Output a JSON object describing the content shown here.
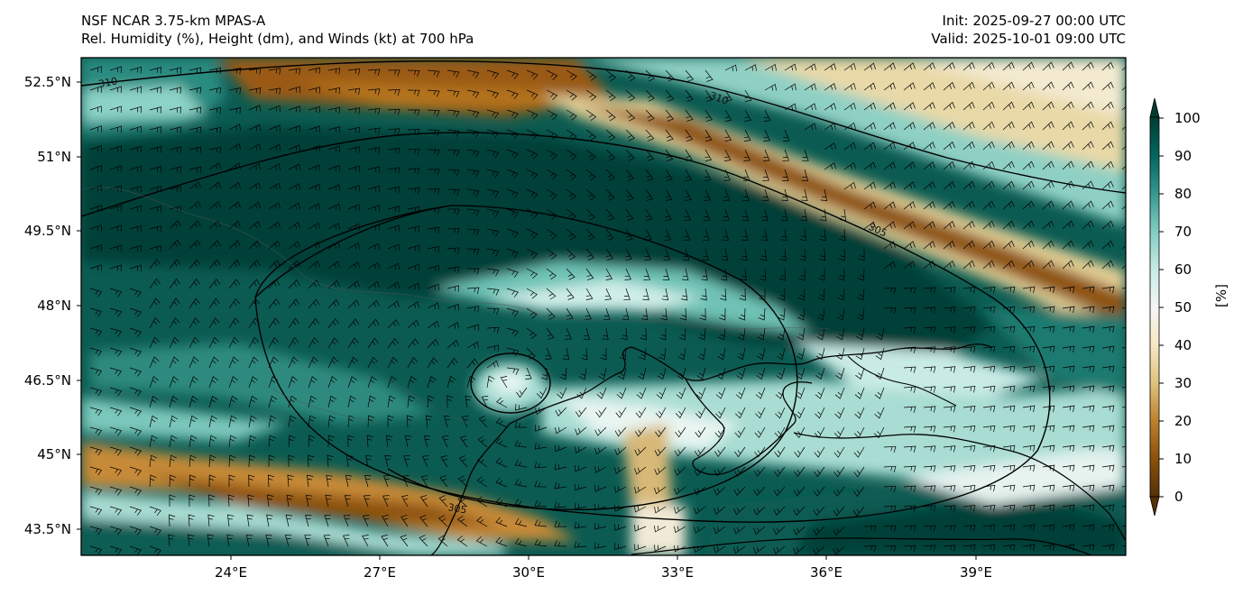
{
  "title_left": {
    "line1": "NSF NCAR 3.75-km MPAS-A",
    "line2": "Rel. Humidity (%), Height (dm), and Winds (kt) at 700 hPa"
  },
  "title_right": {
    "line1": "Init: 2025-09-27 00:00 UTC",
    "line2": "Valid: 2025-10-01 09:00 UTC"
  },
  "map": {
    "lat_ticks": [
      "52.5°N",
      "51°N",
      "49.5°N",
      "48°N",
      "46.5°N",
      "45°N",
      "43.5°N"
    ],
    "lon_ticks": [
      "24°E",
      "27°E",
      "30°E",
      "33°E",
      "36°E",
      "39°E"
    ],
    "contour_labels": [
      "310",
      "310",
      "305",
      "305"
    ],
    "colors": {
      "rh_moist": "#01403a",
      "rh_mid": "#f5f5f2",
      "rh_dry": "#8a4f0a",
      "contour": "#000000",
      "barb": "#000000"
    }
  },
  "colorbar": {
    "label": "[%]",
    "ticks": [
      "100",
      "90",
      "80",
      "70",
      "60",
      "50",
      "40",
      "30",
      "20",
      "10",
      "0"
    ],
    "colors": [
      "#543005",
      "#8c510a",
      "#bf812d",
      "#dfc27d",
      "#f6e8c3",
      "#f5f5f5",
      "#c7eae5",
      "#80cdc1",
      "#35978f",
      "#01665e",
      "#003c30"
    ]
  }
}
